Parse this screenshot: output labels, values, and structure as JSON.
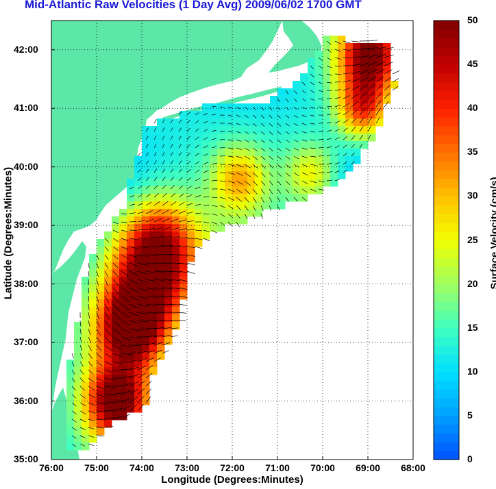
{
  "title": "Mid-Atlantic Raw Velocities (1 Day Avg) 2009/06/02 1700 GMT",
  "map": {
    "xlabel": "Longitude (Degrees:Minutes)",
    "ylabel": "Latitude (Degrees:Minutes)",
    "lon_ticks": [
      "76:00",
      "75:00",
      "74:00",
      "73:00",
      "72:00",
      "71:00",
      "70:00",
      "69:00",
      "68:00"
    ],
    "lat_ticks": [
      "42:00",
      "41:00",
      "40:00",
      "39:00",
      "38:00",
      "37:00",
      "36:00",
      "35:00"
    ],
    "lon_range": [
      -76,
      -68
    ],
    "lat_range": [
      35,
      42.5
    ],
    "land_color": "#5ce6a8",
    "grid_style": "dotted"
  },
  "colorbar": {
    "label": "Surface Velocity (cm/s)",
    "ticks": [
      "50",
      "45",
      "40",
      "35",
      "30",
      "25",
      "20",
      "15",
      "10",
      "5",
      "0"
    ],
    "range": [
      0,
      50
    ],
    "colors": [
      "#0050ff",
      "#00a0ff",
      "#00e0ff",
      "#40ffc0",
      "#a0ff60",
      "#f0ff00",
      "#ffc000",
      "#ff7000",
      "#ff2000",
      "#c00000",
      "#800000"
    ]
  }
}
